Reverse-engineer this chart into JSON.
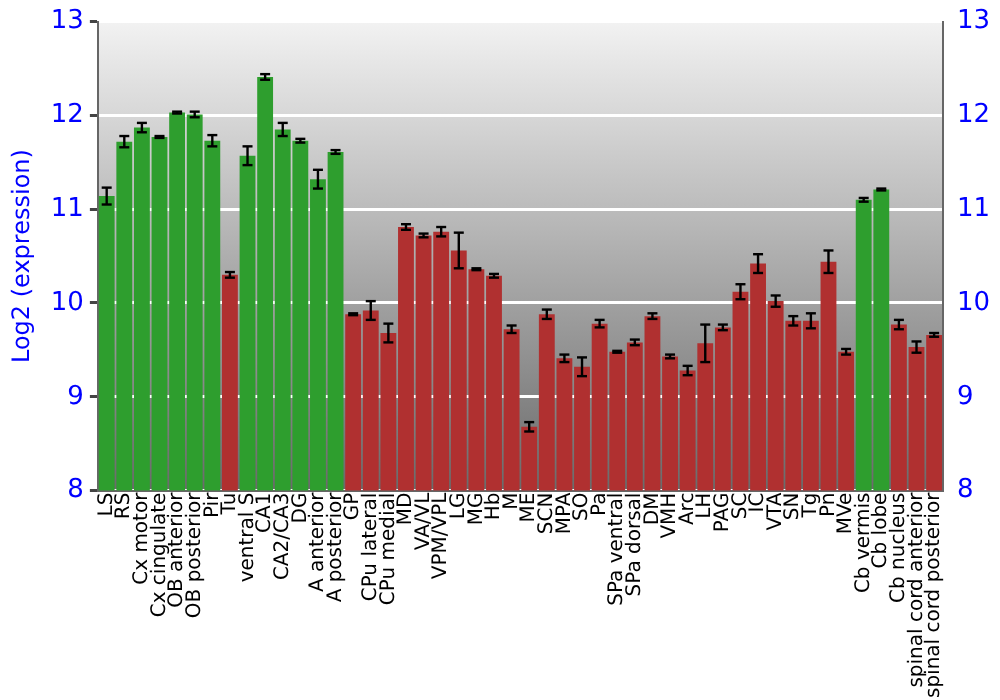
{
  "chart_data": {
    "type": "bar",
    "ylabel": "Log2 (expression)",
    "categories": [
      "LS",
      "RS",
      "Cx motor",
      "Cx cingulate",
      "OB anterior",
      "OB posterior",
      "Pir",
      "Tu",
      "ventral S",
      "CA1",
      "CA2/CA3",
      "DG",
      "A anterior",
      "A posterior",
      "GP",
      "CPu lateral",
      "CPu medial",
      "MD",
      "VA/VL",
      "VPM/VPL",
      "LG",
      "MG",
      "Hb",
      "M",
      "ME",
      "SCN",
      "MPA",
      "SO",
      "Pa",
      "SPa ventral",
      "SPa dorsal",
      "DM",
      "VMH",
      "Arc",
      "LH",
      "PAG",
      "SC",
      "IC",
      "VTA",
      "SN",
      "Tg",
      "Pn",
      "MVe",
      "Cb vermis",
      "Cb lobe",
      "Cb nucleus",
      "spinal cord anterior",
      "spinal cord posterior"
    ],
    "values": [
      11.14,
      11.72,
      11.87,
      11.77,
      12.03,
      12.01,
      11.73,
      10.3,
      11.57,
      12.41,
      11.85,
      11.73,
      11.32,
      11.61,
      9.88,
      9.92,
      9.68,
      10.81,
      10.72,
      10.76,
      10.56,
      10.36,
      10.29,
      9.72,
      8.68,
      9.88,
      9.41,
      9.32,
      9.78,
      9.48,
      9.58,
      9.86,
      9.43,
      9.28,
      9.57,
      9.74,
      10.12,
      10.42,
      10.02,
      9.81,
      9.81,
      10.44,
      9.48,
      11.1,
      11.21,
      9.77,
      9.53,
      9.66
    ],
    "errors": [
      0.09,
      0.06,
      0.05,
      0.01,
      0.01,
      0.03,
      0.06,
      0.03,
      0.1,
      0.03,
      0.07,
      0.02,
      0.1,
      0.02,
      0.01,
      0.1,
      0.1,
      0.03,
      0.02,
      0.05,
      0.19,
      0.01,
      0.02,
      0.04,
      0.05,
      0.05,
      0.04,
      0.1,
      0.04,
      0.01,
      0.03,
      0.03,
      0.02,
      0.05,
      0.2,
      0.03,
      0.08,
      0.1,
      0.06,
      0.05,
      0.08,
      0.12,
      0.03,
      0.02,
      0.01,
      0.05,
      0.06,
      0.02
    ],
    "colors": [
      "#2e9e2e",
      "#2e9e2e",
      "#2e9e2e",
      "#2e9e2e",
      "#2e9e2e",
      "#2e9e2e",
      "#2e9e2e",
      "#b03030",
      "#2e9e2e",
      "#2e9e2e",
      "#2e9e2e",
      "#2e9e2e",
      "#2e9e2e",
      "#2e9e2e",
      "#b03030",
      "#b03030",
      "#b03030",
      "#b03030",
      "#b03030",
      "#b03030",
      "#b03030",
      "#b03030",
      "#b03030",
      "#b03030",
      "#b03030",
      "#b03030",
      "#b03030",
      "#b03030",
      "#b03030",
      "#b03030",
      "#b03030",
      "#b03030",
      "#b03030",
      "#b03030",
      "#b03030",
      "#b03030",
      "#b03030",
      "#b03030",
      "#b03030",
      "#b03030",
      "#b03030",
      "#b03030",
      "#b03030",
      "#2e9e2e",
      "#2e9e2e",
      "#b03030",
      "#b03030",
      "#b03030"
    ],
    "ylim": [
      8,
      13
    ],
    "yticks": [
      8,
      9,
      10,
      11,
      12,
      13
    ],
    "y2lim": [
      8,
      13
    ],
    "y2ticks": [
      8,
      9,
      10,
      11,
      12,
      13
    ],
    "grid": "y",
    "legend": false
  }
}
